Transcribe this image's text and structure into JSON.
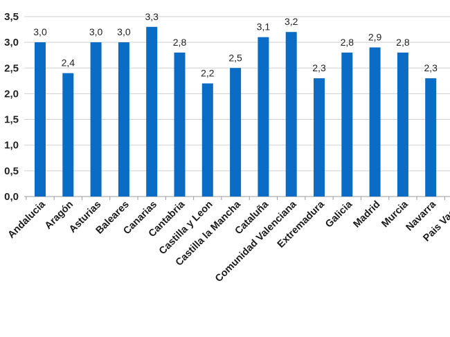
{
  "chart_data": {
    "type": "bar",
    "categories": [
      "Andalucia",
      "Aragón",
      "Asturias",
      "Baleares",
      "Canarias",
      "Cantabria",
      "Castilla y Leon",
      "Castilla la Mancha",
      "Cataluña",
      "Comunidad  Valenciana",
      "Extremadura",
      "Galicia",
      "Madrid",
      "Murcia",
      "Navarra",
      "Pais Vasco"
    ],
    "values": [
      3.0,
      2.4,
      3.0,
      3.0,
      3.3,
      2.8,
      2.2,
      2.5,
      3.1,
      3.2,
      2.3,
      2.8,
      2.9,
      2.8,
      2.3,
      null
    ],
    "data_labels": [
      "3,0",
      "2,4",
      "3,0",
      "3,0",
      "3,3",
      "2,8",
      "2,2",
      "2,5",
      "3,1",
      "3,2",
      "2,3",
      "2,8",
      "2,9",
      "2,8",
      "2,3",
      ""
    ],
    "yticks": [
      "0,0",
      "0,5",
      "1,0",
      "1,5",
      "2,0",
      "2,5",
      "3,0",
      "3,5"
    ],
    "ylim": [
      0,
      3.5
    ],
    "grid": true,
    "bar_color": "#0a6cc4",
    "title": "",
    "xlabel": "",
    "ylabel": ""
  }
}
